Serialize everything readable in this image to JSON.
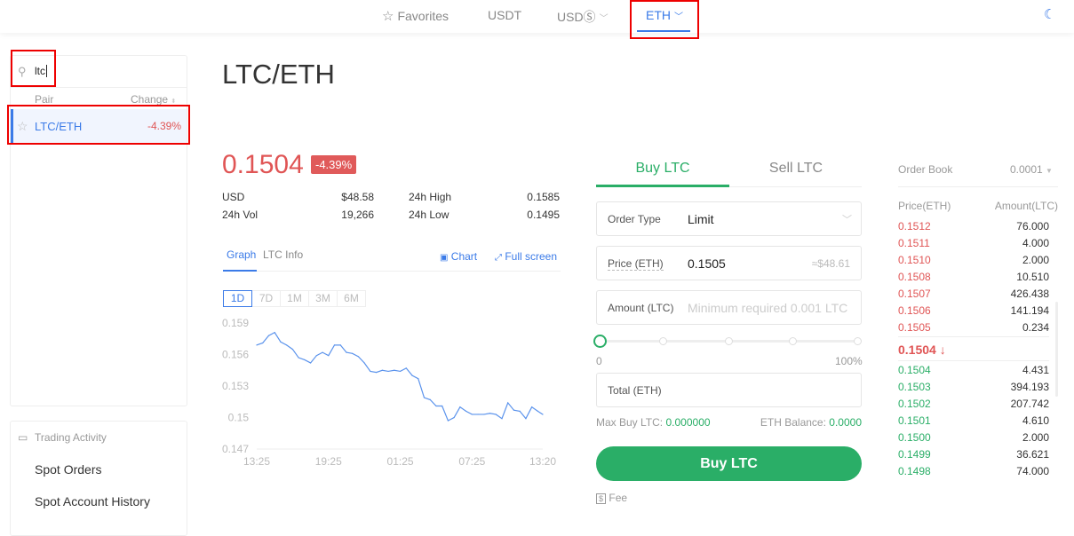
{
  "nav": {
    "items": [
      {
        "label": "Favorites",
        "icon": "star-icon"
      },
      {
        "label": "USDT"
      },
      {
        "label": "USDⓈ",
        "icon": "chevron-down-icon"
      },
      {
        "label": "ETH",
        "icon": "chevron-down-icon",
        "active": true
      }
    ],
    "theme_icon": "moon-icon"
  },
  "sidebar": {
    "search_value": "ltc",
    "col_pair": "Pair",
    "col_change": "Change",
    "rows": [
      {
        "pair": "LTC/ETH",
        "change": "-4.39%"
      }
    ],
    "activity_title": "Trading Activity",
    "links": [
      "Spot Orders",
      "Spot Account History"
    ]
  },
  "main": {
    "title": "LTC/ETH",
    "price": "0.1504",
    "change_badge": "-4.39%",
    "stats": [
      {
        "label": "USD",
        "value": "$48.58"
      },
      {
        "label": "24h High",
        "value": "0.1585"
      },
      {
        "label": "24h Vol",
        "value": "19,266"
      },
      {
        "label": "24h Low",
        "value": "0.1495"
      }
    ],
    "tabs": [
      "Graph",
      "LTC Info"
    ],
    "chart_link": "Chart",
    "fullscreen_link": "Full screen",
    "ranges": [
      "1D",
      "7D",
      "1M",
      "3M",
      "6M"
    ]
  },
  "chart_data": {
    "type": "line",
    "x_ticks": [
      "13:25",
      "19:25",
      "01:25",
      "07:25",
      "13:20"
    ],
    "y_ticks": [
      "0.159",
      "0.156",
      "0.153",
      "0.15",
      "0.147"
    ],
    "ylim": [
      0.147,
      0.159
    ],
    "x": [
      "13:25",
      "13:55",
      "14:25",
      "14:55",
      "15:25",
      "15:55",
      "16:25",
      "16:55",
      "17:25",
      "17:55",
      "18:25",
      "18:55",
      "19:25",
      "19:55",
      "20:25",
      "20:55",
      "21:25",
      "21:55",
      "22:25",
      "22:55",
      "23:25",
      "23:55",
      "00:25",
      "00:55",
      "01:25",
      "01:55",
      "02:25",
      "02:55",
      "03:25",
      "03:55",
      "04:25",
      "04:55",
      "05:25",
      "05:55",
      "06:25",
      "06:55",
      "07:25",
      "07:55",
      "08:25",
      "08:55",
      "09:25",
      "09:55",
      "10:25",
      "10:55",
      "11:25",
      "11:55",
      "12:25",
      "12:55",
      "13:20"
    ],
    "values": [
      0.1569,
      0.1571,
      0.1578,
      0.1581,
      0.1572,
      0.1569,
      0.1565,
      0.1557,
      0.1555,
      0.1552,
      0.1559,
      0.1562,
      0.1559,
      0.1569,
      0.1569,
      0.1562,
      0.1561,
      0.1558,
      0.1552,
      0.1544,
      0.1543,
      0.1545,
      0.1544,
      0.1545,
      0.1544,
      0.1547,
      0.154,
      0.1537,
      0.1519,
      0.1517,
      0.1511,
      0.1511,
      0.1497,
      0.15,
      0.151,
      0.1506,
      0.1503,
      0.1503,
      0.1503,
      0.1504,
      0.1503,
      0.1499,
      0.1514,
      0.1507,
      0.1506,
      0.1499,
      0.151,
      0.1506,
      0.1503
    ],
    "color": "#5b93ec",
    "grid": false
  },
  "trade": {
    "buy_tab": "Buy LTC",
    "sell_tab": "Sell LTC",
    "order_type_label": "Order Type",
    "order_type_value": "Limit",
    "price_label": "Price (ETH)",
    "price_value": "0.1505",
    "price_usd": "≈$48.61",
    "amount_label": "Amount (LTC)",
    "amount_placeholder": "Minimum required 0.001 LTC",
    "slider_min": "0",
    "slider_max": "100%",
    "slider_value": 0,
    "total_label": "Total (ETH)",
    "max_buy_label": "Max Buy LTC:",
    "max_buy_value": "0.000000",
    "balance_label": "ETH Balance:",
    "balance_value": "0.0000",
    "buy_button": "Buy LTC",
    "fee_label": "Fee"
  },
  "orderbook": {
    "title": "Order Book",
    "precision": "0.0001",
    "col_price": "Price(ETH)",
    "col_amount": "Amount(LTC)",
    "asks": [
      [
        "0.1512",
        "76.000"
      ],
      [
        "0.1511",
        "4.000"
      ],
      [
        "0.1510",
        "2.000"
      ],
      [
        "0.1508",
        "10.510"
      ],
      [
        "0.1507",
        "426.438"
      ],
      [
        "0.1506",
        "141.194"
      ],
      [
        "0.1505",
        "0.234"
      ]
    ],
    "last_price": "0.1504",
    "bids": [
      [
        "0.1504",
        "4.431"
      ],
      [
        "0.1503",
        "394.193"
      ],
      [
        "0.1502",
        "207.742"
      ],
      [
        "0.1501",
        "4.610"
      ],
      [
        "0.1500",
        "2.000"
      ],
      [
        "0.1499",
        "36.621"
      ],
      [
        "0.1498",
        "74.000"
      ]
    ]
  },
  "colors": {
    "up": "#2aae67",
    "down": "#e05555",
    "accent": "#3b7be8"
  }
}
